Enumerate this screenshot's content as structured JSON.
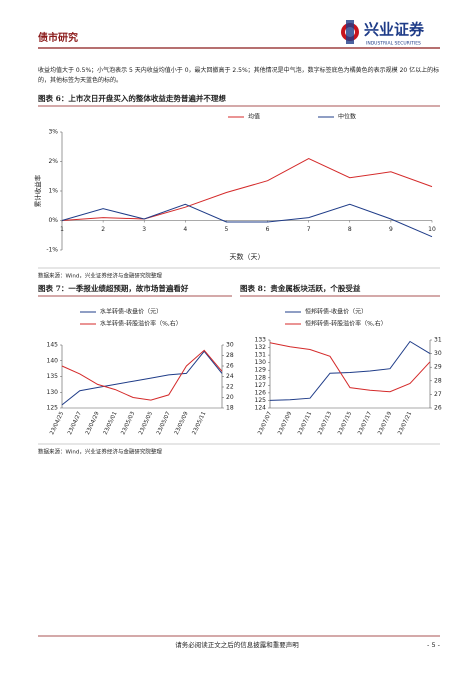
{
  "header": {
    "section": "债市研究",
    "brand": "兴业证券",
    "brand_en": "INDUSTRIAL SECURITIES"
  },
  "intro": "收益均值大于 0.5%；小气泡表示 5 天内收益均值小于 0，最大回撤高于 2.5%；其他情况是中气泡，数字标签底色为橘黄色的表示规模 20 亿以上的标的，其他标签为天蓝色的标的。",
  "figures": [
    {
      "title": "图表 6：上市次日开盘买入的整体收益走势普遍并不理想",
      "source": "数据来源：Wind，兴业证券经济与金融研究院整理"
    },
    {
      "title": "图表 7：一季报业绩超预期，故市场普遍看好",
      "source": "数据来源：Wind，兴业证券经济与金融研究院整理"
    },
    {
      "title": "图表 8：贵金属板块活跃，个股受益"
    }
  ],
  "footer": {
    "disclaimer": "请务必阅读正文之后的信息披露和重要声明",
    "page": "- 5 -"
  },
  "chart_data": [
    {
      "type": "line",
      "xlabel": "天数（天）",
      "ylabel": "累计收益率",
      "x": [
        1,
        2,
        3,
        4,
        5,
        6,
        7,
        8,
        9,
        10
      ],
      "xlim": [
        1,
        10
      ],
      "xticks": [
        1,
        2,
        3,
        4,
        5,
        6,
        7,
        8,
        9,
        10
      ],
      "ylim": [
        -1,
        3
      ],
      "yticks": [
        {
          "value": -1,
          "label": "-1%"
        },
        {
          "value": 0,
          "label": "0%"
        },
        {
          "value": 1,
          "label": "1%"
        },
        {
          "value": 2,
          "label": "2%"
        },
        {
          "value": 3,
          "label": "3%"
        }
      ],
      "series": [
        {
          "name": "均值",
          "color": "#d42a2a",
          "values": [
            0,
            0.1,
            0.05,
            0.45,
            0.95,
            1.35,
            2.1,
            1.45,
            1.65,
            1.15
          ]
        },
        {
          "name": "中位数",
          "color": "#1f3c88",
          "values": [
            0,
            0.4,
            0.05,
            0.55,
            -0.05,
            -0.05,
            0.1,
            0.55,
            0.05,
            -0.55
          ]
        }
      ]
    },
    {
      "type": "line",
      "categories": [
        "23/04/25",
        "23/04/27",
        "23/04/29",
        "23/05/01",
        "23/05/03",
        "23/05/05",
        "23/05/07",
        "23/05/09",
        "23/05/11",
        null
      ],
      "ylim": [
        125,
        145
      ],
      "yticks": [
        125,
        130,
        135,
        140,
        145
      ],
      "y2lim": [
        18,
        30
      ],
      "y2ticks": [
        18,
        20,
        22,
        24,
        26,
        28,
        30
      ],
      "series": [
        {
          "name": "水羊转债-收盘价（元）",
          "color": "#1f3c88",
          "values": [
            126,
            130.5,
            131.5,
            132.5,
            133.5,
            134.5,
            135.5,
            136,
            143,
            136
          ]
        },
        {
          "name": "水羊转债-转股溢价率（%,右）",
          "color": "#d42a2a",
          "axis": "y2",
          "values": [
            26,
            24.5,
            22.5,
            21.5,
            20,
            19.5,
            20.5,
            26,
            29,
            25
          ]
        }
      ]
    },
    {
      "type": "line",
      "categories": [
        "23/07/07",
        "23/07/09",
        "23/07/11",
        "23/07/13",
        "23/07/15",
        "23/07/17",
        "23/07/19",
        "23/07/21",
        null
      ],
      "ylim": [
        124,
        133
      ],
      "yticks": [
        124,
        125,
        126,
        127,
        128,
        129,
        130,
        131,
        132,
        133
      ],
      "y2lim": [
        26,
        31
      ],
      "y2ticks": [
        26,
        27,
        28,
        29,
        30,
        31
      ],
      "series": [
        {
          "name": "恒邦转债-收盘价（元）",
          "color": "#1f3c88",
          "values": [
            125,
            125.1,
            125.3,
            128.6,
            128.7,
            128.9,
            129.2,
            132.8,
            131.2
          ]
        },
        {
          "name": "恒邦转债-转股溢价率（%,右）",
          "color": "#d42a2a",
          "axis": "y2",
          "values": [
            30.8,
            30.5,
            30.3,
            29.8,
            27.5,
            27.3,
            27.2,
            27.8,
            29.4
          ]
        }
      ]
    }
  ]
}
